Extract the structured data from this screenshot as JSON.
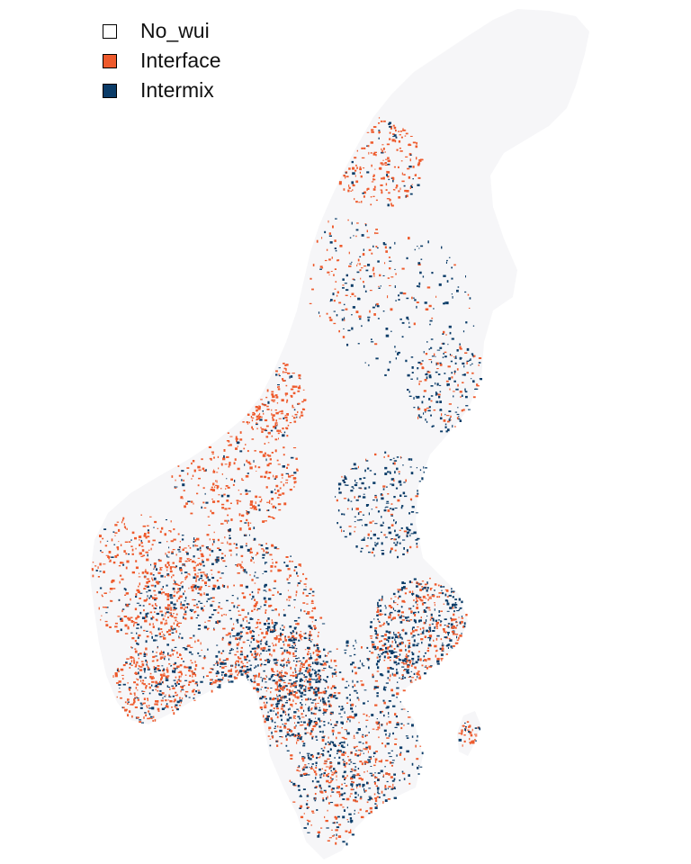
{
  "legend": {
    "items": [
      {
        "label": "No_wui",
        "color": "#ffffff"
      },
      {
        "label": "Interface",
        "color": "#ee5a2c"
      },
      {
        "label": "Intermix",
        "color": "#0b3c68"
      }
    ]
  },
  "map": {
    "land_color": "#f6f6f8",
    "regions": [
      "norway-sweden-landmass",
      "gotland-island"
    ]
  }
}
